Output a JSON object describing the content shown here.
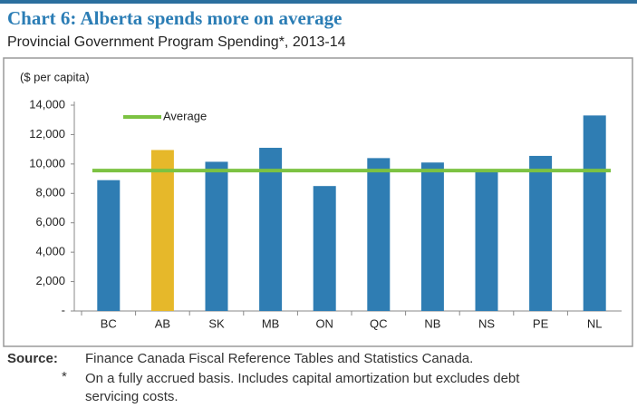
{
  "chart_data": {
    "type": "bar",
    "title": "Chart 6: Alberta spends more on average",
    "subtitle": "Provincial Government Program Spending*, 2013-14",
    "y_label": "($ per capita)",
    "categories": [
      "BC",
      "AB",
      "SK",
      "MB",
      "ON",
      "QC",
      "NB",
      "NS",
      "PE",
      "NL"
    ],
    "values": [
      8900,
      10950,
      10150,
      11100,
      8500,
      10400,
      10100,
      9500,
      10550,
      13300
    ],
    "colors": [
      "#2f7db3",
      "#e6b82a",
      "#2f7db3",
      "#2f7db3",
      "#2f7db3",
      "#2f7db3",
      "#2f7db3",
      "#2f7db3",
      "#2f7db3",
      "#2f7db3"
    ],
    "average": {
      "name": "Average",
      "value": 9550,
      "color": "#7cc242"
    },
    "ylim": [
      0,
      14000
    ],
    "yticks": [
      {
        "value": 0,
        "label": "-"
      },
      {
        "value": 2000,
        "label": "2,000"
      },
      {
        "value": 4000,
        "label": "4,000"
      },
      {
        "value": 6000,
        "label": "6,000"
      },
      {
        "value": 8000,
        "label": "8,000"
      },
      {
        "value": 10000,
        "label": "10,000"
      },
      {
        "value": 12000,
        "label": "12,000"
      },
      {
        "value": 14000,
        "label": "14,000"
      }
    ],
    "grid": false,
    "source_label": "Source:",
    "source": "Finance Canada Fiscal Reference Tables and Statistics Canada.",
    "note_marker": "*",
    "note": [
      "On a fully accrued basis. Includes capital amortization but excludes debt",
      "servicing costs."
    ]
  }
}
